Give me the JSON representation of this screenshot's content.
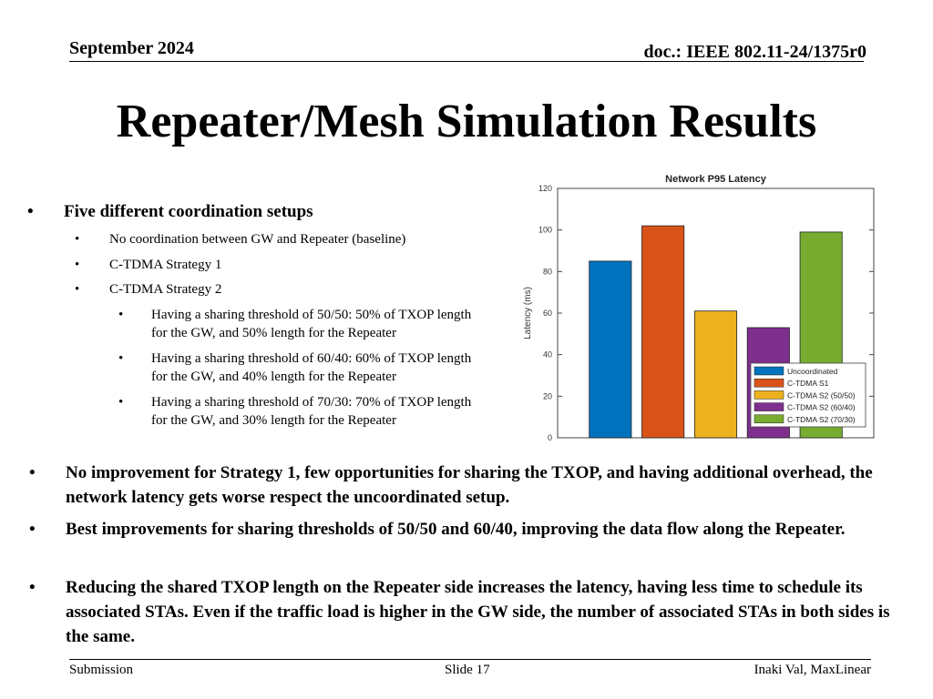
{
  "header": {
    "date": "September 2024",
    "doc": "doc.: IEEE 802.11-24/1375r0"
  },
  "title": "Repeater/Mesh Simulation Results",
  "bullets": {
    "main": "Five different coordination setups",
    "sub": [
      "No coordination between GW and Repeater (baseline)",
      "C-TDMA Strategy 1",
      "C-TDMA Strategy 2"
    ],
    "subsub": [
      "Having a sharing threshold of 50/50: 50% of TXOP length for the GW, and 50% length for the Repeater",
      "Having a sharing threshold of 60/40: 60% of TXOP length for the GW, and 40% length for the Repeater",
      "Having a sharing threshold of 70/30: 70% of TXOP length for the GW, and 30% length for the Repeater"
    ],
    "bottom": [
      "No improvement for Strategy 1, few opportunities for sharing the TXOP, and having additional overhead, the network latency gets worse respect the uncoordinated setup.",
      "Best improvements for sharing thresholds of 50/50 and 60/40, improving the data flow along the Repeater.",
      "Reducing the shared TXOP length on the Repeater side increases the latency, having less time to schedule its associated STAs. Even if the traffic load is higher in the GW side, the number of associated STAs in both sides is the same."
    ]
  },
  "bullet_char": "•",
  "chart_data": {
    "type": "bar",
    "title": "Network P95 Latency",
    "xlabel": "",
    "ylabel": "Latency (ms)",
    "ylim": [
      0,
      120
    ],
    "yticks": [
      0,
      20,
      40,
      60,
      80,
      100,
      120
    ],
    "categories": [
      "Uncoordinated",
      "C-TDMA S1",
      "C-TDMA S2 (50/50)",
      "C-TDMA S2 (60/40)",
      "C-TDMA S2 (70/30)"
    ],
    "values": [
      85,
      102,
      61,
      53,
      99
    ],
    "colors": [
      "#0072BD",
      "#D95319",
      "#EDB120",
      "#7E2F8E",
      "#77AC30"
    ],
    "legend_position": "bottom-right",
    "grid": false
  },
  "footer": {
    "left": "Submission",
    "center": "Slide 17",
    "right": "Inaki Val, MaxLinear"
  }
}
